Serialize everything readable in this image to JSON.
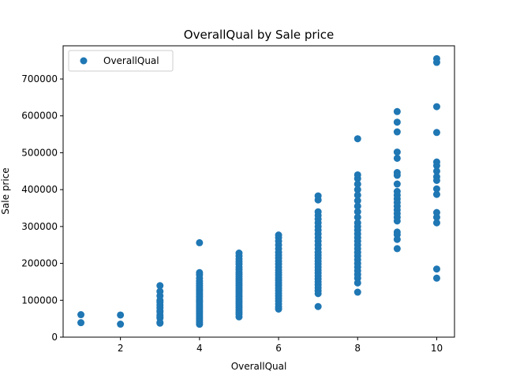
{
  "chart_data": {
    "type": "scatter",
    "title": "OverallQual by Sale price",
    "xlabel": "OverallQual",
    "ylabel": "Sale price",
    "xlim": [
      0.55,
      10.45
    ],
    "ylim": [
      0,
      790000
    ],
    "xticks": [
      2,
      4,
      6,
      8,
      10
    ],
    "yticks": [
      0,
      100000,
      200000,
      300000,
      400000,
      500000,
      600000,
      700000
    ],
    "grid": false,
    "legend": {
      "position": "top-left",
      "entries": [
        "OverallQual"
      ]
    },
    "color": "#1f77b4",
    "series": [
      {
        "name": "OverallQual",
        "points": [
          [
            1,
            61000
          ],
          [
            1,
            39300
          ],
          [
            2,
            60000
          ],
          [
            2,
            35311
          ],
          [
            3,
            139600
          ],
          [
            3,
            124000
          ],
          [
            3,
            112000
          ],
          [
            3,
            100000
          ],
          [
            3,
            95000
          ],
          [
            3,
            87000
          ],
          [
            3,
            80000
          ],
          [
            3,
            72000
          ],
          [
            3,
            68500
          ],
          [
            3,
            60000
          ],
          [
            3,
            55000
          ],
          [
            3,
            52000
          ],
          [
            3,
            40000
          ],
          [
            3,
            37900
          ],
          [
            4,
            256000
          ],
          [
            4,
            175000
          ],
          [
            4,
            169000
          ],
          [
            4,
            160000
          ],
          [
            4,
            152000
          ],
          [
            4,
            146000
          ],
          [
            4,
            140000
          ],
          [
            4,
            135000
          ],
          [
            4,
            130000
          ],
          [
            4,
            125000
          ],
          [
            4,
            120000
          ],
          [
            4,
            115000
          ],
          [
            4,
            110000
          ],
          [
            4,
            105000
          ],
          [
            4,
            100000
          ],
          [
            4,
            95000
          ],
          [
            4,
            90000
          ],
          [
            4,
            85000
          ],
          [
            4,
            80000
          ],
          [
            4,
            75000
          ],
          [
            4,
            70000
          ],
          [
            4,
            65000
          ],
          [
            4,
            60000
          ],
          [
            4,
            55000
          ],
          [
            4,
            50000
          ],
          [
            4,
            45000
          ],
          [
            4,
            40000
          ],
          [
            4,
            35000
          ],
          [
            5,
            228000
          ],
          [
            5,
            220000
          ],
          [
            5,
            212000
          ],
          [
            5,
            205000
          ],
          [
            5,
            198000
          ],
          [
            5,
            190000
          ],
          [
            5,
            183000
          ],
          [
            5,
            176000
          ],
          [
            5,
            170000
          ],
          [
            5,
            164000
          ],
          [
            5,
            158000
          ],
          [
            5,
            152000
          ],
          [
            5,
            146000
          ],
          [
            5,
            140000
          ],
          [
            5,
            134000
          ],
          [
            5,
            128000
          ],
          [
            5,
            122000
          ],
          [
            5,
            116000
          ],
          [
            5,
            110000
          ],
          [
            5,
            104000
          ],
          [
            5,
            98000
          ],
          [
            5,
            92000
          ],
          [
            5,
            86000
          ],
          [
            5,
            80000
          ],
          [
            5,
            74000
          ],
          [
            5,
            68000
          ],
          [
            5,
            62000
          ],
          [
            5,
            55000
          ],
          [
            6,
            277000
          ],
          [
            6,
            270000
          ],
          [
            6,
            260000
          ],
          [
            6,
            250000
          ],
          [
            6,
            240000
          ],
          [
            6,
            230000
          ],
          [
            6,
            222000
          ],
          [
            6,
            214000
          ],
          [
            6,
            206000
          ],
          [
            6,
            198000
          ],
          [
            6,
            190000
          ],
          [
            6,
            182000
          ],
          [
            6,
            175000
          ],
          [
            6,
            168000
          ],
          [
            6,
            161000
          ],
          [
            6,
            154000
          ],
          [
            6,
            147000
          ],
          [
            6,
            140000
          ],
          [
            6,
            133000
          ],
          [
            6,
            126000
          ],
          [
            6,
            119000
          ],
          [
            6,
            112000
          ],
          [
            6,
            105000
          ],
          [
            6,
            98000
          ],
          [
            6,
            90000
          ],
          [
            6,
            82000
          ],
          [
            6,
            76000
          ],
          [
            7,
            383000
          ],
          [
            7,
            372000
          ],
          [
            7,
            340000
          ],
          [
            7,
            330000
          ],
          [
            7,
            320000
          ],
          [
            7,
            310000
          ],
          [
            7,
            300000
          ],
          [
            7,
            290000
          ],
          [
            7,
            280000
          ],
          [
            7,
            270000
          ],
          [
            7,
            260000
          ],
          [
            7,
            250000
          ],
          [
            7,
            240000
          ],
          [
            7,
            230000
          ],
          [
            7,
            222000
          ],
          [
            7,
            214000
          ],
          [
            7,
            206000
          ],
          [
            7,
            198000
          ],
          [
            7,
            190000
          ],
          [
            7,
            182000
          ],
          [
            7,
            174000
          ],
          [
            7,
            166000
          ],
          [
            7,
            158000
          ],
          [
            7,
            150000
          ],
          [
            7,
            142000
          ],
          [
            7,
            134000
          ],
          [
            7,
            126000
          ],
          [
            7,
            118000
          ],
          [
            7,
            83000
          ],
          [
            8,
            538000
          ],
          [
            8,
            440000
          ],
          [
            8,
            430000
          ],
          [
            8,
            415000
          ],
          [
            8,
            400000
          ],
          [
            8,
            385000
          ],
          [
            8,
            370000
          ],
          [
            8,
            355000
          ],
          [
            8,
            340000
          ],
          [
            8,
            325000
          ],
          [
            8,
            310000
          ],
          [
            8,
            300000
          ],
          [
            8,
            290000
          ],
          [
            8,
            280000
          ],
          [
            8,
            270000
          ],
          [
            8,
            260000
          ],
          [
            8,
            250000
          ],
          [
            8,
            240000
          ],
          [
            8,
            230000
          ],
          [
            8,
            220000
          ],
          [
            8,
            210000
          ],
          [
            8,
            200000
          ],
          [
            8,
            190000
          ],
          [
            8,
            180000
          ],
          [
            8,
            170000
          ],
          [
            8,
            160000
          ],
          [
            8,
            147000
          ],
          [
            8,
            122000
          ],
          [
            9,
            611657
          ],
          [
            9,
            582933
          ],
          [
            9,
            556581
          ],
          [
            9,
            501837
          ],
          [
            9,
            485000
          ],
          [
            9,
            446261
          ],
          [
            9,
            438780
          ],
          [
            9,
            415298
          ],
          [
            9,
            395000
          ],
          [
            9,
            385000
          ],
          [
            9,
            375000
          ],
          [
            9,
            365000
          ],
          [
            9,
            355000
          ],
          [
            9,
            345000
          ],
          [
            9,
            335000
          ],
          [
            9,
            325000
          ],
          [
            9,
            315000
          ],
          [
            9,
            285000
          ],
          [
            9,
            278000
          ],
          [
            9,
            265000
          ],
          [
            9,
            240000
          ],
          [
            10,
            755000
          ],
          [
            10,
            745000
          ],
          [
            10,
            625000
          ],
          [
            10,
            555000
          ],
          [
            10,
            475000
          ],
          [
            10,
            465000
          ],
          [
            10,
            450000
          ],
          [
            10,
            435000
          ],
          [
            10,
            425000
          ],
          [
            10,
            402000
          ],
          [
            10,
            387000
          ],
          [
            10,
            338000
          ],
          [
            10,
            325000
          ],
          [
            10,
            310000
          ],
          [
            10,
            184750
          ],
          [
            10,
            160000
          ]
        ]
      }
    ]
  }
}
